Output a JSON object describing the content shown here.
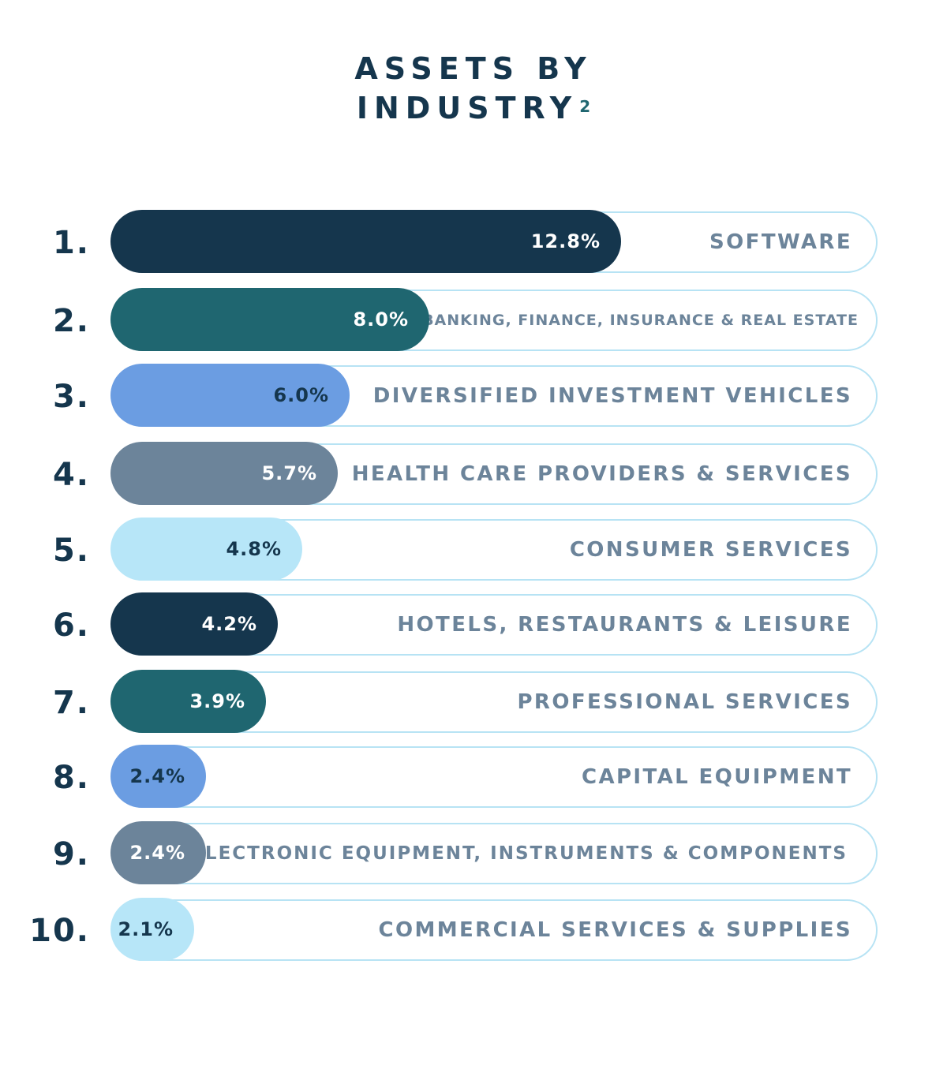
{
  "title_line1": "ASSETS BY",
  "title_line2": "INDUSTRY",
  "title_sup": "2",
  "colors": {
    "navy": "#15364d",
    "teal": "#1f6670",
    "blue": "#6b9de2",
    "slate": "#6c849a",
    "sky": "#b7e6f8",
    "track_border": "#b7e3f4",
    "label_text": "#6c849a"
  },
  "chart_data": {
    "type": "bar",
    "orientation": "horizontal",
    "unit": "%",
    "categories": [
      "SOFTWARE",
      "BANKING, FINANCE, INSURANCE & REAL ESTATE",
      "DIVERSIFIED INVESTMENT VEHICLES",
      "HEALTH CARE PROVIDERS & SERVICES",
      "CONSUMER SERVICES",
      "HOTELS, RESTAURANTS & LEISURE",
      "PROFESSIONAL SERVICES",
      "CAPITAL EQUIPMENT",
      "ELECTRONIC EQUIPMENT, INSTRUMENTS & COMPONENTS",
      "COMMERCIAL SERVICES & SUPPLIES"
    ],
    "ranks": [
      "1.",
      "2.",
      "3.",
      "4.",
      "5.",
      "6.",
      "7.",
      "8.",
      "9.",
      "10."
    ],
    "values": [
      12.8,
      8.0,
      6.0,
      5.7,
      4.8,
      4.2,
      3.9,
      2.4,
      2.4,
      2.1
    ],
    "value_labels": [
      "12.8%",
      "8.0%",
      "6.0%",
      "5.7%",
      "4.8%",
      "4.2%",
      "3.9%",
      "2.4%",
      "2.4%",
      "2.1%"
    ],
    "bar_colors": [
      "navy",
      "teal",
      "blue",
      "slate",
      "sky",
      "navy",
      "teal",
      "blue",
      "slate",
      "sky"
    ],
    "value_text_colors": [
      "#ffffff",
      "#ffffff",
      "#15364d",
      "#ffffff",
      "#15364d",
      "#ffffff",
      "#ffffff",
      "#15364d",
      "#ffffff",
      "#15364d"
    ],
    "xlim": [
      0,
      19.2
    ]
  }
}
